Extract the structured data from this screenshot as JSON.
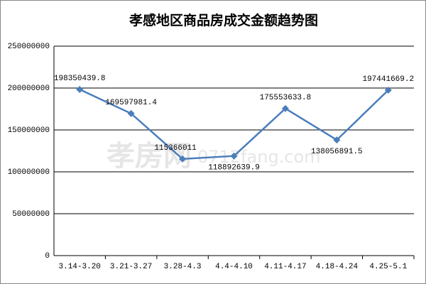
{
  "chart_data": {
    "type": "line",
    "title": "孝感地区商品房成交金额趋势图",
    "categories": [
      "3.14-3.20",
      "3.21-3.27",
      "3.28-4.3",
      "4.4-4.10",
      "4.11-4.17",
      "4.18-4.24",
      "4.25-5.1"
    ],
    "series": [
      {
        "name": "成交金额",
        "color": "#4a7ebb",
        "values": [
          198350439.8,
          169597981.4,
          115366011,
          118892639.9,
          175553633.8,
          138056891.5,
          197441669.2
        ]
      }
    ],
    "ylim": [
      0,
      250000000
    ],
    "yticks": [
      0,
      50000000,
      100000000,
      150000000,
      200000000,
      250000000
    ],
    "grid": true,
    "watermark": "孝房网",
    "watermark_url": "0712fang.com"
  }
}
